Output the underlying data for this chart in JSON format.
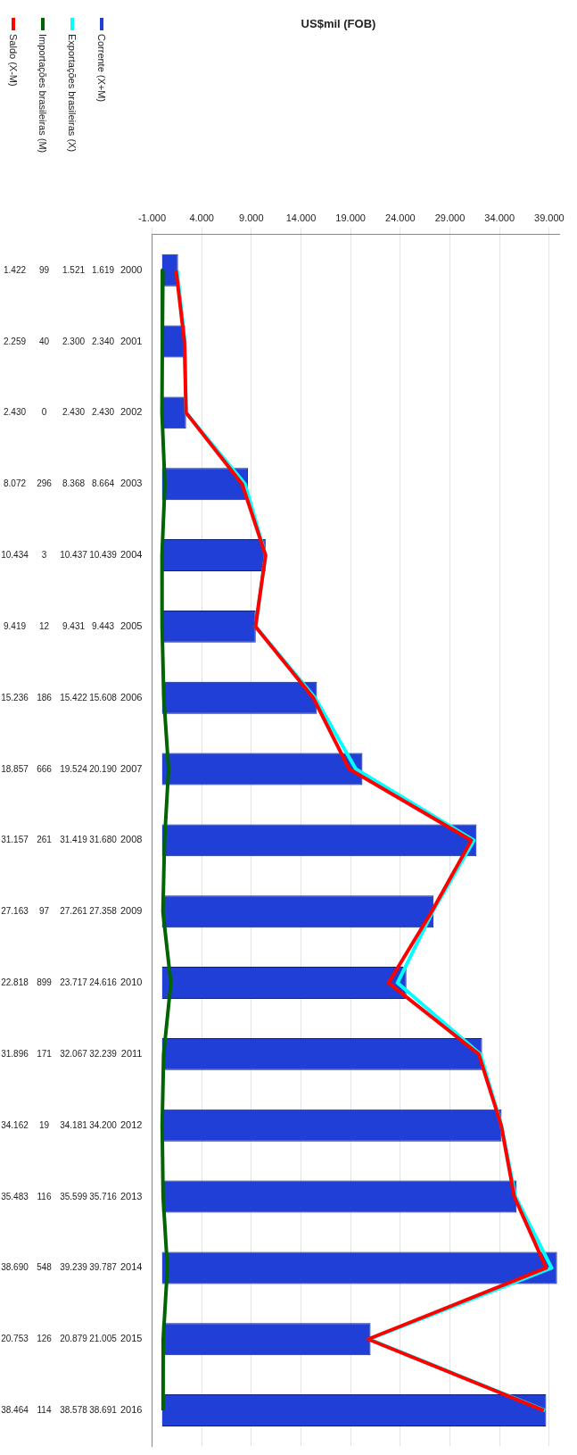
{
  "chart_data": {
    "type": "bar",
    "orientation": "horizontal",
    "title": "US$mil (FOB)",
    "categories": [
      "2000",
      "2001",
      "2002",
      "2003",
      "2004",
      "2005",
      "2006",
      "2007",
      "2008",
      "2009",
      "2010",
      "2011",
      "2012",
      "2013",
      "2014",
      "2015",
      "2016"
    ],
    "series": [
      {
        "name": "Corrente (X+M)",
        "color": "#1f3fd6",
        "values": [
          1619,
          2340,
          2430,
          8664,
          10439,
          9443,
          15608,
          20190,
          31680,
          27358,
          24616,
          32239,
          34200,
          35716,
          39787,
          21005,
          38691
        ],
        "value_labels": [
          "1.619",
          "2.340",
          "2.430",
          "8.664",
          "10.439",
          "9.443",
          "15.608",
          "20.190",
          "31.680",
          "27.358",
          "24.616",
          "32.239",
          "34.200",
          "35.716",
          "39.787",
          "21.005",
          "38.691"
        ]
      },
      {
        "name": "Exportações brasileiras (X)",
        "type": "line",
        "color": "#00ffff",
        "values": [
          1521,
          2300,
          2430,
          8368,
          10437,
          9431,
          15422,
          19524,
          31419,
          27261,
          23717,
          32067,
          34181,
          35599,
          39239,
          20879,
          38578
        ],
        "value_labels": [
          "1.521",
          "2.300",
          "2.430",
          "8.368",
          "10.437",
          "9.431",
          "15.422",
          "19.524",
          "31.419",
          "27.261",
          "23.717",
          "32.067",
          "34.181",
          "35.599",
          "39.239",
          "20.879",
          "38.578"
        ]
      },
      {
        "name": "Importações brasileiras (M)",
        "type": "line",
        "color": "#006400",
        "values": [
          99,
          40,
          0,
          296,
          3,
          12,
          186,
          666,
          261,
          97,
          899,
          171,
          19,
          116,
          548,
          126,
          114
        ],
        "value_labels": [
          "99",
          "40",
          "0",
          "296",
          "3",
          "12",
          "186",
          "666",
          "261",
          "97",
          "899",
          "171",
          "19",
          "116",
          "548",
          "126",
          "114"
        ]
      },
      {
        "name": "Saldo (X-M)",
        "type": "line",
        "color": "#ff0000",
        "values": [
          1422,
          2259,
          2430,
          8072,
          10434,
          9419,
          15236,
          18857,
          31157,
          27163,
          22818,
          31896,
          34162,
          35483,
          38690,
          20753,
          38464
        ],
        "value_labels": [
          "1.422",
          "2.259",
          "2.430",
          "8.072",
          "10.434",
          "9.419",
          "15.236",
          "18.857",
          "31.157",
          "27.163",
          "22.818",
          "31.896",
          "34.162",
          "35.483",
          "38.690",
          "20.753",
          "38.464"
        ]
      }
    ],
    "xlim": [
      -1000,
      40000
    ],
    "xticks": [
      {
        "value": -1000,
        "label": "-1.000"
      },
      {
        "value": 4000,
        "label": "4.000"
      },
      {
        "value": 9000,
        "label": "9.000"
      },
      {
        "value": 14000,
        "label": "14.000"
      },
      {
        "value": 19000,
        "label": "19.000"
      },
      {
        "value": 24000,
        "label": "24.000"
      },
      {
        "value": 29000,
        "label": "29.000"
      },
      {
        "value": 34000,
        "label": "34.000"
      },
      {
        "value": 39000,
        "label": "39.000"
      }
    ],
    "grid": "x",
    "legend": "left",
    "marker": "none"
  }
}
